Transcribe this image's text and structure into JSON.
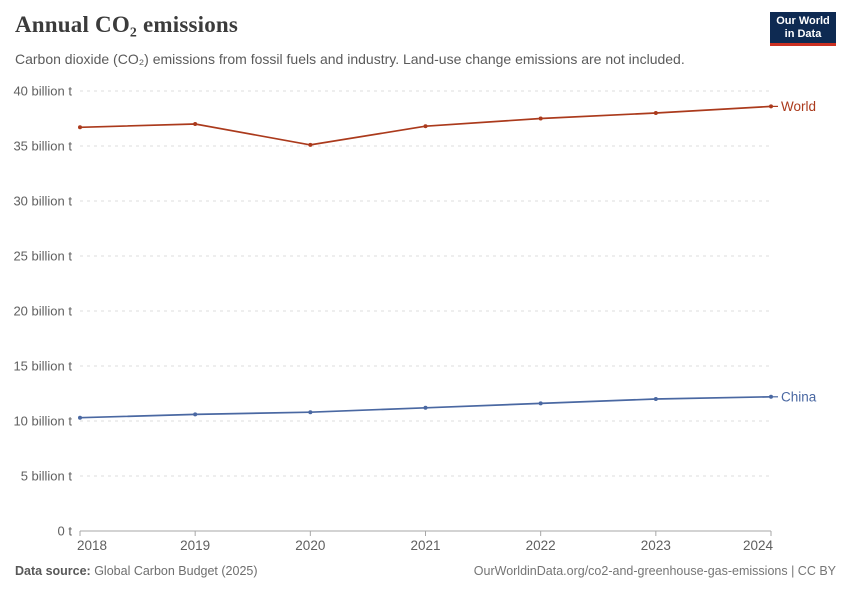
{
  "header": {
    "title": "Annual CO₂ emissions",
    "subtitle": "Carbon dioxide (CO₂) emissions from fossil fuels and industry. Land-use change emissions are not included."
  },
  "logo": {
    "line1": "Our World",
    "line2": "in Data",
    "bg_color": "#0e2a52",
    "accent_color": "#cb3022"
  },
  "footer": {
    "source_label": "Data source:",
    "source_value": " Global Carbon Budget (2025)",
    "right_text": "OurWorldinData.org/co2-and-greenhouse-gas-emissions | CC BY"
  },
  "chart_data": {
    "type": "line",
    "title": "Annual CO₂ emissions",
    "xlabel": "",
    "ylabel": "",
    "x": [
      2018,
      2019,
      2020,
      2021,
      2022,
      2023,
      2024
    ],
    "series": [
      {
        "name": "World",
        "color": "#ab3a1c",
        "values": [
          36.7,
          37.0,
          35.1,
          36.8,
          37.5,
          38.0,
          38.6
        ]
      },
      {
        "name": "China",
        "color": "#4a68a2",
        "values": [
          10.3,
          10.6,
          10.8,
          11.2,
          11.6,
          12.0,
          12.2
        ]
      }
    ],
    "unit": "billion t",
    "ylim": [
      0,
      40
    ],
    "ytick_step": 5,
    "ytick_label_format": "{v} billion t",
    "ytick_zero_label": "0 t",
    "grid": "dashed-horizontal",
    "legend": "end-of-line-labels",
    "axis_color": "#a7a7a7",
    "grid_color": "#dcdcdc",
    "tick_label_color": "#606060"
  }
}
